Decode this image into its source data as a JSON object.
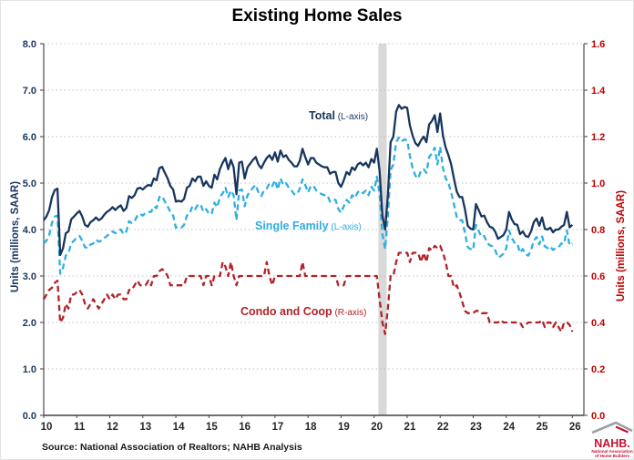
{
  "title": "Existing Home Sales",
  "source": "Source: National Association of Realtors; NAHB Analysis",
  "left_axis": {
    "title": "Units (millions, SAAR)",
    "ticks": [
      "0.0",
      "1.0",
      "2.0",
      "3.0",
      "4.0",
      "5.0",
      "6.0",
      "7.0",
      "8.0"
    ],
    "color": "#17365D",
    "min": 0,
    "max": 8
  },
  "right_axis": {
    "title": "Units (millions, SAAR)",
    "ticks": [
      "0.0",
      "0.2",
      "0.4",
      "0.6",
      "0.8",
      "1.0",
      "1.2",
      "1.4",
      "1.6"
    ],
    "color": "#C00000",
    "min": 0,
    "max": 1.6
  },
  "x_axis": {
    "labels": [
      "10",
      "11",
      "12",
      "13",
      "14",
      "15",
      "16",
      "17",
      "18",
      "19",
      "20",
      "21",
      "22",
      "23",
      "24",
      "25",
      "26"
    ],
    "start_year": 2010,
    "end": 2026.35,
    "label_color": "#262626"
  },
  "annotations": {
    "total": {
      "label": "Total",
      "axis_note": " (L-axis)"
    },
    "single_family": {
      "label": "Single Family",
      "axis_note": " (L-axis)"
    },
    "condo": {
      "label": "Condo and Coop",
      "axis_note": " (R-axis)"
    }
  },
  "recession_band": {
    "from": 2020.13,
    "to": 2020.38,
    "color": "#D9D9D9"
  },
  "colors": {
    "total_line": "#17365D",
    "single_family_line": "#2FAEE0",
    "condo_line": "#B02328",
    "grid": "#BFBFBF",
    "axis": "#595959",
    "nahb_red": "#C41230"
  },
  "logo": {
    "name": "NAHB.",
    "line1": "National Association",
    "line2": "of Home Builders"
  },
  "chart_data": {
    "type": "line",
    "title": "Existing Home Sales",
    "x_start": 2010.0,
    "x_step_months": 1,
    "left_ylim": [
      0,
      8
    ],
    "right_ylim": [
      0,
      1.6
    ],
    "grid": "dotted-horizontal",
    "legend_position": "inline-annotations",
    "series": [
      {
        "name": "Total",
        "axis": "left",
        "style": "solid",
        "color": "#17365D",
        "values": [
          4.2,
          4.28,
          4.42,
          4.7,
          4.85,
          4.88,
          3.45,
          3.6,
          3.92,
          3.96,
          4.22,
          4.28,
          4.35,
          4.4,
          4.28,
          4.1,
          4.06,
          4.16,
          4.2,
          4.26,
          4.2,
          4.24,
          4.32,
          4.38,
          4.42,
          4.48,
          4.42,
          4.48,
          4.52,
          4.4,
          4.46,
          4.72,
          4.68,
          4.74,
          4.88,
          4.9,
          4.86,
          4.92,
          4.96,
          4.94,
          5.1,
          5.06,
          5.32,
          5.35,
          5.22,
          5.1,
          4.94,
          4.86,
          4.6,
          4.62,
          4.6,
          4.66,
          4.9,
          4.94,
          5.1,
          5.04,
          5.14,
          5.14,
          4.94,
          5.04,
          4.94,
          4.9,
          5.18,
          5.08,
          5.3,
          5.44,
          5.54,
          5.3,
          5.5,
          5.34,
          4.76,
          5.44,
          5.46,
          5.1,
          5.34,
          5.42,
          5.5,
          5.56,
          5.4,
          5.32,
          5.44,
          5.54,
          5.6,
          5.5,
          5.66,
          5.46,
          5.7,
          5.56,
          5.6,
          5.5,
          5.44,
          5.36,
          5.36,
          5.48,
          5.74,
          5.56,
          5.4,
          5.54,
          5.54,
          5.44,
          5.4,
          5.36,
          5.34,
          5.34,
          5.2,
          5.24,
          5.24,
          5.0,
          4.92,
          5.06,
          5.24,
          5.18,
          5.34,
          5.28,
          5.4,
          5.44,
          5.38,
          5.44,
          5.34,
          5.52,
          5.44,
          5.74,
          5.26,
          4.3,
          4.0,
          4.74,
          5.88,
          6.0,
          6.54,
          6.68,
          6.6,
          6.64,
          6.62,
          6.24,
          6.02,
          5.86,
          5.8,
          5.92,
          6.0,
          5.88,
          6.26,
          6.34,
          6.46,
          6.1,
          6.5,
          6.02,
          5.76,
          5.6,
          5.4,
          5.1,
          4.82,
          4.7,
          4.7,
          4.44,
          4.08,
          4.02,
          4.0,
          4.55,
          4.42,
          4.28,
          4.3,
          4.16,
          4.06,
          4.04,
          3.95,
          3.8,
          3.84,
          3.88,
          4.0,
          4.38,
          4.22,
          4.12,
          4.1,
          3.9,
          3.96,
          3.86,
          3.84,
          3.96,
          4.16,
          4.24,
          4.08,
          4.26,
          4.02,
          4.0,
          4.04,
          3.94,
          4.0,
          4.0,
          4.06,
          4.1,
          4.38,
          4.05,
          4.1
        ]
      },
      {
        "name": "Single Family",
        "axis": "left",
        "style": "dashed",
        "color": "#2FAEE0",
        "values": [
          3.7,
          3.76,
          3.88,
          4.15,
          4.28,
          4.3,
          3.05,
          3.18,
          3.44,
          3.5,
          3.7,
          3.76,
          3.82,
          3.86,
          3.76,
          3.62,
          3.6,
          3.68,
          3.7,
          3.78,
          3.74,
          3.76,
          3.82,
          3.86,
          3.92,
          3.96,
          3.92,
          3.96,
          4.0,
          3.9,
          3.96,
          4.18,
          4.14,
          4.18,
          4.3,
          4.34,
          4.3,
          4.36,
          4.38,
          4.38,
          4.5,
          4.46,
          4.7,
          4.72,
          4.6,
          4.5,
          4.38,
          4.3,
          4.04,
          4.06,
          4.04,
          4.1,
          4.3,
          4.34,
          4.5,
          4.44,
          4.54,
          4.54,
          4.38,
          4.44,
          4.34,
          4.34,
          4.58,
          4.48,
          4.7,
          4.78,
          4.9,
          4.7,
          4.84,
          4.74,
          4.2,
          4.84,
          4.86,
          4.5,
          4.74,
          4.82,
          4.9,
          4.96,
          4.8,
          4.72,
          4.84,
          4.88,
          5.0,
          4.94,
          5.06,
          4.86,
          5.1,
          4.96,
          5.0,
          4.9,
          4.84,
          4.76,
          4.76,
          4.88,
          5.08,
          4.96,
          4.8,
          4.94,
          4.94,
          4.84,
          4.8,
          4.76,
          4.74,
          4.74,
          4.6,
          4.64,
          4.64,
          4.44,
          4.36,
          4.5,
          4.64,
          4.58,
          4.74,
          4.68,
          4.8,
          4.84,
          4.78,
          4.84,
          4.74,
          4.92,
          4.84,
          5.14,
          4.76,
          3.9,
          3.58,
          4.28,
          5.28,
          5.4,
          5.88,
          5.98,
          5.9,
          5.94,
          5.92,
          5.58,
          5.32,
          5.16,
          5.1,
          5.26,
          5.3,
          5.22,
          5.56,
          5.64,
          5.76,
          5.4,
          5.78,
          5.32,
          5.1,
          5.0,
          4.8,
          4.55,
          4.27,
          4.2,
          4.2,
          3.94,
          3.62,
          3.58,
          3.56,
          4.1,
          3.97,
          3.84,
          3.86,
          3.72,
          3.66,
          3.64,
          3.55,
          3.4,
          3.43,
          3.48,
          3.6,
          3.98,
          3.82,
          3.72,
          3.7,
          3.5,
          3.58,
          3.47,
          3.44,
          3.56,
          3.76,
          3.84,
          3.68,
          3.85,
          3.64,
          3.6,
          3.64,
          3.56,
          3.6,
          3.62,
          3.7,
          3.7,
          3.98,
          3.66,
          3.7
        ]
      },
      {
        "name": "Condo and Coop",
        "axis": "right",
        "style": "dashed",
        "color": "#B02328",
        "values": [
          0.5,
          0.52,
          0.54,
          0.55,
          0.57,
          0.58,
          0.4,
          0.42,
          0.48,
          0.46,
          0.52,
          0.52,
          0.53,
          0.54,
          0.52,
          0.48,
          0.46,
          0.48,
          0.5,
          0.48,
          0.46,
          0.48,
          0.5,
          0.52,
          0.5,
          0.52,
          0.5,
          0.52,
          0.52,
          0.5,
          0.5,
          0.54,
          0.54,
          0.56,
          0.58,
          0.56,
          0.56,
          0.56,
          0.58,
          0.56,
          0.6,
          0.6,
          0.62,
          0.63,
          0.62,
          0.6,
          0.56,
          0.56,
          0.56,
          0.56,
          0.56,
          0.56,
          0.6,
          0.6,
          0.6,
          0.6,
          0.6,
          0.6,
          0.56,
          0.6,
          0.6,
          0.56,
          0.6,
          0.6,
          0.6,
          0.66,
          0.64,
          0.6,
          0.66,
          0.6,
          0.56,
          0.6,
          0.6,
          0.6,
          0.6,
          0.6,
          0.6,
          0.6,
          0.6,
          0.6,
          0.6,
          0.66,
          0.6,
          0.56,
          0.6,
          0.6,
          0.6,
          0.6,
          0.6,
          0.6,
          0.6,
          0.6,
          0.6,
          0.6,
          0.66,
          0.6,
          0.6,
          0.6,
          0.6,
          0.6,
          0.6,
          0.6,
          0.6,
          0.6,
          0.6,
          0.6,
          0.6,
          0.56,
          0.56,
          0.56,
          0.6,
          0.6,
          0.6,
          0.6,
          0.6,
          0.6,
          0.6,
          0.6,
          0.6,
          0.6,
          0.6,
          0.6,
          0.5,
          0.4,
          0.35,
          0.46,
          0.6,
          0.6,
          0.66,
          0.7,
          0.7,
          0.7,
          0.7,
          0.66,
          0.7,
          0.7,
          0.7,
          0.66,
          0.7,
          0.66,
          0.72,
          0.71,
          0.73,
          0.72,
          0.73,
          0.7,
          0.66,
          0.6,
          0.6,
          0.55,
          0.56,
          0.53,
          0.49,
          0.45,
          0.44,
          0.44,
          0.44,
          0.45,
          0.45,
          0.44,
          0.44,
          0.44,
          0.4,
          0.4,
          0.4,
          0.4,
          0.41,
          0.4,
          0.4,
          0.4,
          0.4,
          0.4,
          0.4,
          0.4,
          0.38,
          0.39,
          0.4,
          0.4,
          0.4,
          0.4,
          0.4,
          0.41,
          0.38,
          0.4,
          0.4,
          0.38,
          0.4,
          0.38,
          0.36,
          0.4,
          0.4,
          0.39,
          0.36
        ]
      }
    ]
  }
}
